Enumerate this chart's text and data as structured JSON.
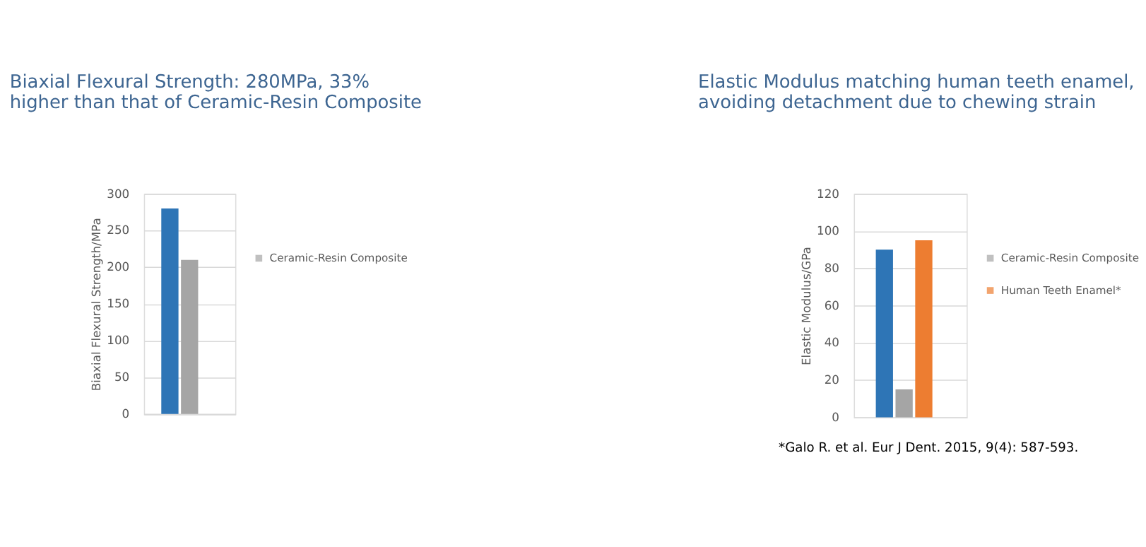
{
  "chart_data": [
    {
      "type": "bar",
      "title": "Biaxial Flexural Strength: 280MPa, 33% higher than that of Ceramic-Resin Composite",
      "ylabel": "Biaxial Flexural Strength/MPa",
      "categories": [
        null
      ],
      "ylim": [
        0,
        300
      ],
      "yticks": [
        0,
        50,
        100,
        150,
        200,
        250,
        300
      ],
      "grid": "y",
      "legend": "right",
      "tick_labels": "y",
      "series": [
        {
          "color": "#2e75b6",
          "values": [
            280
          ]
        },
        {
          "name": "Ceramic-Resin Composite",
          "color": "#a5a5a5",
          "values": [
            210
          ]
        }
      ]
    },
    {
      "type": "bar",
      "title": "Elastic Modulus matching human teeth enamel, avoiding detachment due to chewing strain",
      "ylabel": "Elastic Modulus/GPa",
      "categories": [
        null
      ],
      "ylim": [
        0,
        120
      ],
      "yticks": [
        0,
        20,
        40,
        60,
        80,
        100,
        120
      ],
      "grid": "y",
      "legend": "right",
      "tick_labels": "y",
      "annotations": [
        "*Galo R. et al. Eur J Dent. 2015, 9(4): 587-593."
      ],
      "series": [
        {
          "color": "#2e75b6",
          "values": [
            90
          ]
        },
        {
          "name": "Ceramic-Resin Composite",
          "color": "#a5a5a5",
          "values": [
            15
          ]
        },
        {
          "name": "Human Teeth Enamel*",
          "color": "#ed7d31",
          "values": [
            95
          ]
        }
      ]
    }
  ]
}
